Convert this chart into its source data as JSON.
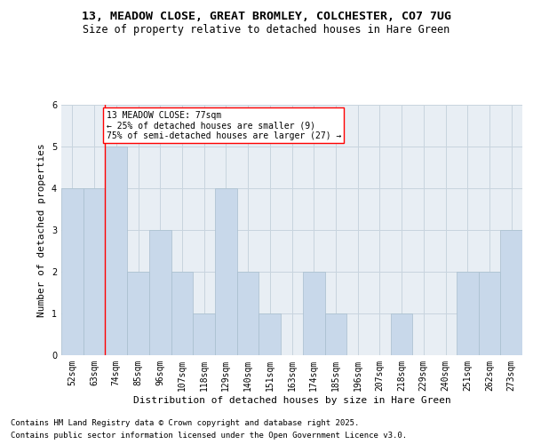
{
  "title_line1": "13, MEADOW CLOSE, GREAT BROMLEY, COLCHESTER, CO7 7UG",
  "title_line2": "Size of property relative to detached houses in Hare Green",
  "xlabel": "Distribution of detached houses by size in Hare Green",
  "ylabel": "Number of detached properties",
  "footer_line1": "Contains HM Land Registry data © Crown copyright and database right 2025.",
  "footer_line2": "Contains public sector information licensed under the Open Government Licence v3.0.",
  "bin_labels": [
    "52sqm",
    "63sqm",
    "74sqm",
    "85sqm",
    "96sqm",
    "107sqm",
    "118sqm",
    "129sqm",
    "140sqm",
    "151sqm",
    "163sqm",
    "174sqm",
    "185sqm",
    "196sqm",
    "207sqm",
    "218sqm",
    "229sqm",
    "240sqm",
    "251sqm",
    "262sqm",
    "273sqm"
  ],
  "bar_values": [
    4,
    4,
    5,
    2,
    3,
    2,
    1,
    4,
    2,
    1,
    0,
    2,
    1,
    0,
    0,
    1,
    0,
    0,
    2,
    2,
    3
  ],
  "bar_color": "#c8d8ea",
  "bar_edge_color": "#a8bece",
  "subject_line_bin": 2,
  "annotation_text": "13 MEADOW CLOSE: 77sqm\n← 25% of detached houses are smaller (9)\n75% of semi-detached houses are larger (27) →",
  "annotation_box_color": "white",
  "annotation_box_edge_color": "red",
  "red_line_color": "red",
  "grid_color": "#c8d4de",
  "background_color": "#e8eef4",
  "ylim": [
    0,
    6
  ],
  "yticks": [
    0,
    1,
    2,
    3,
    4,
    5,
    6
  ],
  "title_fontsize": 9.5,
  "subtitle_fontsize": 8.5,
  "axis_label_fontsize": 8,
  "tick_fontsize": 7,
  "annotation_fontsize": 7,
  "footer_fontsize": 6.5
}
